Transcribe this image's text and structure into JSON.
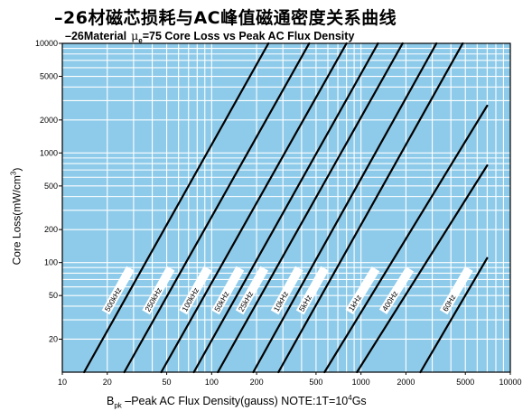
{
  "title_cn": "–26材磁芯损耗与AC峰值磁通密度关系曲线",
  "subtitle": {
    "prefix": "–26Material",
    "mu_symbol": "μ",
    "mu_sub": "e",
    "suffix": "=75 Core Loss vs Peak AC Flux Density"
  },
  "ylabel": {
    "text": "Core Loss(mW/cm",
    "sup": "3",
    "close": ")"
  },
  "xlabel": {
    "b": "B",
    "pk": "pk",
    "text": " –Peak AC Flux Density(gauss)  NOTE:1T=10",
    "sup": "4",
    "tail": "Gs"
  },
  "colors": {
    "plot_bg": "#8ECBEA",
    "grid": "#FFFFFF",
    "line": "#000000",
    "label_bg": "#FFFFFF"
  },
  "chart_data": {
    "type": "line",
    "x_scale": "log",
    "y_scale": "log",
    "xlim": [
      10,
      10000
    ],
    "ylim": [
      10,
      10000
    ],
    "x_tick_labels": [
      "10",
      "20",
      "50",
      "100",
      "200",
      "500",
      "1000",
      "2000",
      "5000",
      "10000"
    ],
    "y_tick_labels": [
      "20",
      "50",
      "100",
      "200",
      "500",
      "1000",
      "2000",
      "5000",
      "10000"
    ],
    "grid": true,
    "series": [
      {
        "name": "500kHz",
        "x": [
          14,
          240
        ],
        "y": [
          10,
          10000
        ]
      },
      {
        "name": "250kHz",
        "x": [
          26,
          450
        ],
        "y": [
          10,
          10000
        ]
      },
      {
        "name": "100kHz",
        "x": [
          46,
          800
        ],
        "y": [
          10,
          10000
        ]
      },
      {
        "name": "50kHz",
        "x": [
          76,
          1300
        ],
        "y": [
          10,
          10000
        ]
      },
      {
        "name": "25kHz",
        "x": [
          110,
          1900
        ],
        "y": [
          10,
          10000
        ]
      },
      {
        "name": "10kHz",
        "x": [
          190,
          3200
        ],
        "y": [
          10,
          10000
        ]
      },
      {
        "name": "5kHz",
        "x": [
          280,
          4800
        ],
        "y": [
          10,
          10000
        ]
      },
      {
        "name": "1kHz",
        "x": [
          570,
          7000
        ],
        "y": [
          10,
          2700
        ]
      },
      {
        "name": "400Hz",
        "x": [
          940,
          7000
        ],
        "y": [
          10,
          770
        ]
      },
      {
        "name": "60Hz",
        "x": [
          2500,
          7000
        ],
        "y": [
          10,
          110
        ]
      }
    ]
  }
}
